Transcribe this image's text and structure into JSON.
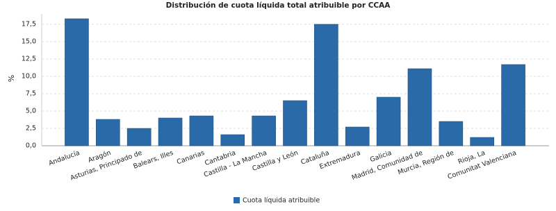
{
  "chart_data": {
    "type": "bar",
    "title": "Distribución de cuota líquida total atribuible por CCAA",
    "y_label": "%",
    "categories": [
      "Andalucía",
      "Aragón",
      "Asturias, Principado de",
      "Balears, Illes",
      "Canarias",
      "Cantabria",
      "Castilla - La Mancha",
      "Castilla y León",
      "Cataluña",
      "Extremadura",
      "Galicia",
      "Madrid, Comunidad de",
      "Murcia, Región de",
      "Rioja, La",
      "Comunitat Valenciana"
    ],
    "series": [
      {
        "name": "Cuota líquida atribuible",
        "color": "#2a6aa8",
        "values": [
          18.3,
          3.8,
          2.5,
          4.0,
          4.3,
          1.6,
          4.3,
          6.5,
          17.5,
          2.7,
          7.0,
          11.1,
          3.5,
          1.2,
          11.7
        ]
      }
    ],
    "ylim": [
      0,
      19
    ],
    "yticks": [
      {
        "value": 0,
        "label": "0,0"
      },
      {
        "value": 2.5,
        "label": "2,5"
      },
      {
        "value": 5,
        "label": "5,0"
      },
      {
        "value": 7.5,
        "label": "7,5"
      },
      {
        "value": 10,
        "label": "10,0"
      },
      {
        "value": 12.5,
        "label": "12,5"
      },
      {
        "value": 15,
        "label": "15,0"
      },
      {
        "value": 17.5,
        "label": "17,5"
      }
    ],
    "grid": true
  }
}
